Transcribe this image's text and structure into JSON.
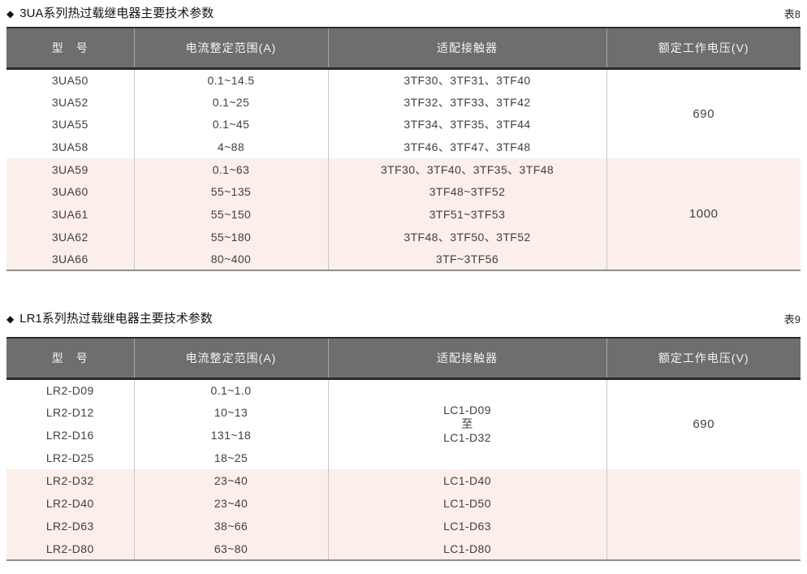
{
  "colors": {
    "header_bg": "#6e6e71",
    "row_pink": "#fceee9",
    "border_dark": "#2b2b2b"
  },
  "tables": [
    {
      "bullet": "◆",
      "title": "3UA系列热过载继电器主要技术参数",
      "tag": "表8",
      "headers": [
        "型　号",
        "电流整定范围(A)",
        "适配接触器",
        "额定工作电压(V)"
      ],
      "rows": [
        {
          "model": "3UA50",
          "range": "0.1~14.5",
          "contactor": "3TF30、3TF31、3TF40"
        },
        {
          "model": "3UA52",
          "range": "0.1~25",
          "contactor": "3TF32、3TF33、3TF42"
        },
        {
          "model": "3UA55",
          "range": "0.1~45",
          "contactor": "3TF34、3TF35、3TF44"
        },
        {
          "model": "3UA58",
          "range": "4~88",
          "contactor": "3TF46、3TF47、3TF48"
        },
        {
          "model": "3UA59",
          "range": "0.1~63",
          "contactor": "3TF30、3TF40、3TF35、3TF48"
        },
        {
          "model": "3UA60",
          "range": "55~135",
          "contactor": "3TF48~3TF52"
        },
        {
          "model": "3UA61",
          "range": "55~150",
          "contactor": "3TF51~3TF53"
        },
        {
          "model": "3UA62",
          "range": "55~180",
          "contactor": "3TF48、3TF50、3TF52"
        },
        {
          "model": "3UA66",
          "range": "80~400",
          "contactor": "3TF~3TF56"
        }
      ],
      "voltage_groups": [
        {
          "label": "690",
          "rows": 4
        },
        {
          "label": "1000",
          "rows": 5
        }
      ]
    },
    {
      "bullet": "◆",
      "title": "LR1系列热过载继电器主要技术参数",
      "tag": "表9",
      "headers": [
        "型　号",
        "电流整定范围(A)",
        "适配接触器",
        "额定工作电压(V)"
      ],
      "rows": [
        {
          "model": "LR2-D09",
          "range": "0.1~1.0",
          "contactor": ""
        },
        {
          "model": "LR2-D12",
          "range": "10~13",
          "contactor": ""
        },
        {
          "model": "LR2-D16",
          "range": "131~18",
          "contactor": ""
        },
        {
          "model": "LR2-D25",
          "range": "18~25",
          "contactor": ""
        },
        {
          "model": "LR2-D32",
          "range": "23~40",
          "contactor": "LC1-D40"
        },
        {
          "model": "LR2-D40",
          "range": "23~40",
          "contactor": "LC1-D50"
        },
        {
          "model": "LR2-D63",
          "range": "38~66",
          "contactor": "LC1-D63"
        },
        {
          "model": "LR2-D80",
          "range": "63~80",
          "contactor": "LC1-D80"
        }
      ],
      "contactor_merged": [
        "LC1-D09",
        "至",
        "LC1-D32"
      ],
      "voltage_groups": [
        {
          "label": "690",
          "rows": 4
        },
        {
          "label": "",
          "rows": 4
        }
      ]
    }
  ]
}
